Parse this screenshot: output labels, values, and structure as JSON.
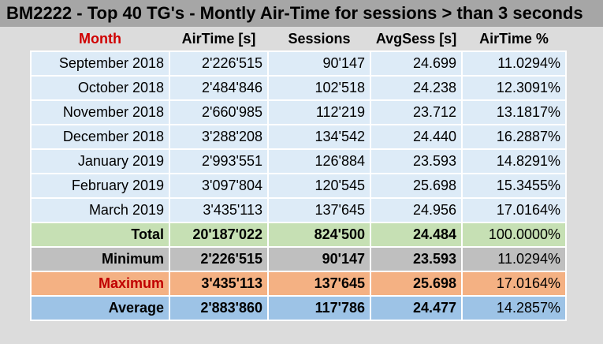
{
  "title": "BM2222 - Top 40 TG's - Montly Air-Time for sessions > than 3 seconds",
  "headers": {
    "month": "Month",
    "airtime": "AirTime [s]",
    "sessions": "Sessions",
    "avgsess": "AvgSess [s]",
    "airtime_pct": "AirTime %"
  },
  "colors": {
    "title_bg": "#a6a6a6",
    "data_row": "#ddebf7",
    "total_row": "#c6e0b4",
    "minimum_row": "#bfbfbf",
    "maximum_row": "#f4b183",
    "average_row": "#9dc3e6",
    "month_header": "#d00000"
  },
  "rows": [
    {
      "month": "September 2018",
      "airtime": "2'226'515",
      "sessions": "90'147",
      "avgsess": "24.699",
      "pct": "11.0294%"
    },
    {
      "month": "October 2018",
      "airtime": "2'484'846",
      "sessions": "102'518",
      "avgsess": "24.238",
      "pct": "12.3091%"
    },
    {
      "month": "November 2018",
      "airtime": "2'660'985",
      "sessions": "112'219",
      "avgsess": "23.712",
      "pct": "13.1817%"
    },
    {
      "month": "December 2018",
      "airtime": "3'288'208",
      "sessions": "134'542",
      "avgsess": "24.440",
      "pct": "16.2887%"
    },
    {
      "month": "January 2019",
      "airtime": "2'993'551",
      "sessions": "126'884",
      "avgsess": "23.593",
      "pct": "14.8291%"
    },
    {
      "month": "February 2019",
      "airtime": "3'097'804",
      "sessions": "120'545",
      "avgsess": "25.698",
      "pct": "15.3455%"
    },
    {
      "month": "March 2019",
      "airtime": "3'435'113",
      "sessions": "137'645",
      "avgsess": "24.956",
      "pct": "17.0164%"
    }
  ],
  "summary": {
    "total": {
      "label": "Total",
      "airtime": "20'187'022",
      "sessions": "824'500",
      "avgsess": "24.484",
      "pct": "100.0000%"
    },
    "minimum": {
      "label": "Minimum",
      "airtime": "2'226'515",
      "sessions": "90'147",
      "avgsess": "23.593",
      "pct": "11.0294%"
    },
    "maximum": {
      "label": "Maximum",
      "airtime": "3'435'113",
      "sessions": "137'645",
      "avgsess": "25.698",
      "pct": "17.0164%"
    },
    "average": {
      "label": "Average",
      "airtime": "2'883'860",
      "sessions": "117'786",
      "avgsess": "24.477",
      "pct": "14.2857%"
    }
  }
}
